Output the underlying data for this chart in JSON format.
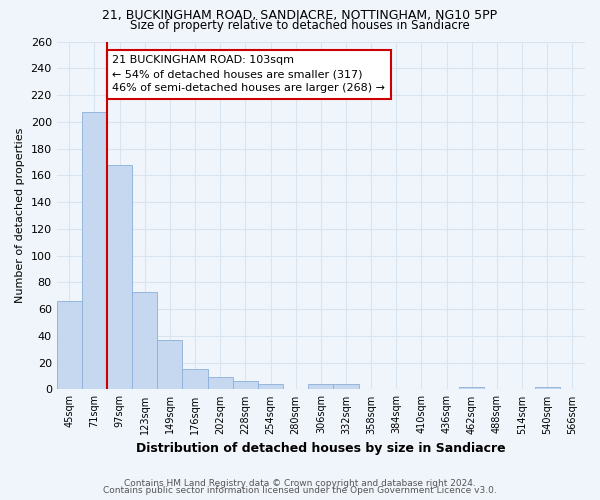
{
  "title1": "21, BUCKINGHAM ROAD, SANDIACRE, NOTTINGHAM, NG10 5PP",
  "title2": "Size of property relative to detached houses in Sandiacre",
  "xlabel": "Distribution of detached houses by size in Sandiacre",
  "ylabel": "Number of detached properties",
  "bins": [
    "45sqm",
    "71sqm",
    "97sqm",
    "123sqm",
    "149sqm",
    "176sqm",
    "202sqm",
    "228sqm",
    "254sqm",
    "280sqm",
    "306sqm",
    "332sqm",
    "358sqm",
    "384sqm",
    "410sqm",
    "436sqm",
    "462sqm",
    "488sqm",
    "514sqm",
    "540sqm",
    "566sqm"
  ],
  "values": [
    66,
    207,
    168,
    73,
    37,
    15,
    9,
    6,
    4,
    0,
    4,
    4,
    0,
    0,
    0,
    0,
    2,
    0,
    0,
    2,
    0
  ],
  "bar_color": "#c5d8f0",
  "bar_edge_color": "#8ab0d8",
  "annotation_text": "21 BUCKINGHAM ROAD: 103sqm\n← 54% of detached houses are smaller (317)\n46% of semi-detached houses are larger (268) →",
  "annotation_box_color": "#ffffff",
  "annotation_box_edge_color": "#cc0000",
  "red_line_color": "#cc0000",
  "ylim": [
    0,
    260
  ],
  "yticks": [
    0,
    20,
    40,
    60,
    80,
    100,
    120,
    140,
    160,
    180,
    200,
    220,
    240,
    260
  ],
  "footer1": "Contains HM Land Registry data © Crown copyright and database right 2024.",
  "footer2": "Contains public sector information licensed under the Open Government Licence v3.0.",
  "bg_color": "#f0f5fb",
  "grid_color": "#d8e4f0"
}
